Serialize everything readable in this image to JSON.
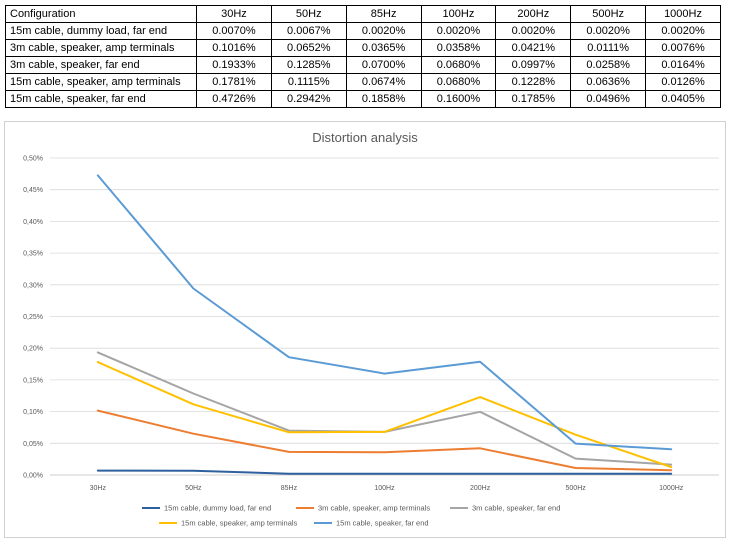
{
  "table": {
    "headers": [
      "Configuration",
      "30Hz",
      "50Hz",
      "85Hz",
      "100Hz",
      "200Hz",
      "500Hz",
      "1000Hz"
    ],
    "rows": [
      [
        "15m cable, dummy load, far end",
        "0.0070%",
        "0.0067%",
        "0.0020%",
        "0.0020%",
        "0.0020%",
        "0.0020%",
        "0.0020%"
      ],
      [
        "3m cable, speaker, amp terminals",
        "0.1016%",
        "0.0652%",
        "0.0365%",
        "0.0358%",
        "0.0421%",
        "0.0111%",
        "0.0076%"
      ],
      [
        "3m cable, speaker, far end",
        "0.1933%",
        "0.1285%",
        "0.0700%",
        "0.0680%",
        "0.0997%",
        "0.0258%",
        "0.0164%"
      ],
      [
        "15m cable, speaker, amp terminals",
        "0.1781%",
        "0.1115%",
        "0.0674%",
        "0.0680%",
        "0.1228%",
        "0.0636%",
        "0.0126%"
      ],
      [
        "15m cable, speaker, far end",
        "0.4726%",
        "0.2942%",
        "0.1858%",
        "0.1600%",
        "0.1785%",
        "0.0496%",
        "0.0405%"
      ]
    ]
  },
  "chart_data": {
    "type": "line",
    "title": "Distortion analysis",
    "categories": [
      "30Hz",
      "50Hz",
      "85Hz",
      "100Hz",
      "200Hz",
      "500Hz",
      "1000Hz"
    ],
    "ylim": [
      0,
      0.5
    ],
    "yticks": [
      "0,00%",
      "0,05%",
      "0,10%",
      "0,15%",
      "0,20%",
      "0,25%",
      "0,30%",
      "0,35%",
      "0,40%",
      "0,45%",
      "0,50%"
    ],
    "grid": true,
    "legend_position": "bottom",
    "series": [
      {
        "name": "15m cable, dummy load, far end",
        "color": "#2e5f9e",
        "values": [
          0.007,
          0.0067,
          0.002,
          0.002,
          0.002,
          0.002,
          0.002
        ]
      },
      {
        "name": "3m cable, speaker, amp terminals",
        "color": "#ed7d31",
        "values": [
          0.1016,
          0.0652,
          0.0365,
          0.0358,
          0.0421,
          0.0111,
          0.0076
        ]
      },
      {
        "name": "3m cable, speaker, far end",
        "color": "#a5a5a5",
        "values": [
          0.1933,
          0.1285,
          0.07,
          0.068,
          0.0997,
          0.0258,
          0.0164
        ]
      },
      {
        "name": "15m cable, speaker, amp terminals",
        "color": "#ffc000",
        "values": [
          0.1781,
          0.1115,
          0.0674,
          0.068,
          0.1228,
          0.0636,
          0.0126
        ]
      },
      {
        "name": "15m cable, speaker, far end",
        "color": "#5b9bd5",
        "values": [
          0.4726,
          0.2942,
          0.1858,
          0.16,
          0.1785,
          0.0496,
          0.0405
        ]
      }
    ]
  }
}
